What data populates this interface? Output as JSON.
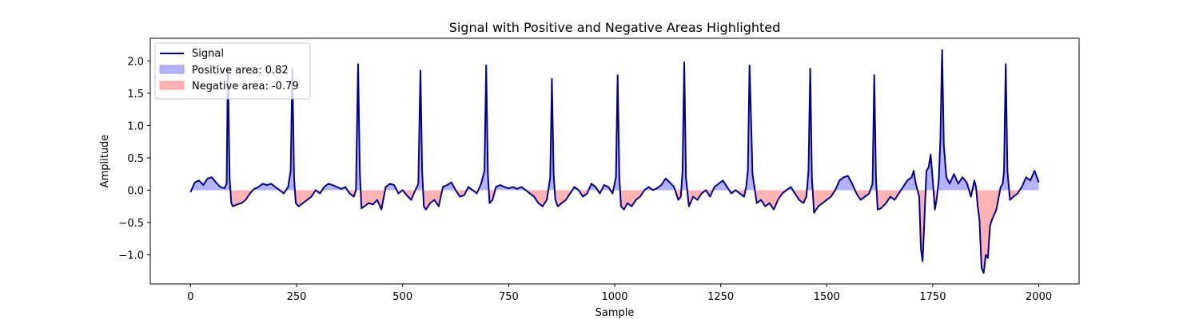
{
  "chart_data": {
    "type": "area",
    "title": "Signal with Positive and Negative Areas Highlighted",
    "xlabel": "Sample",
    "ylabel": "Amplitude",
    "xlim": [
      -95,
      2095
    ],
    "ylim": [
      -1.45,
      2.35
    ],
    "xticks": [
      0,
      250,
      500,
      750,
      1000,
      1250,
      1500,
      1750,
      2000
    ],
    "yticks": [
      -1.0,
      -0.5,
      0.0,
      0.5,
      1.0,
      1.5,
      2.0
    ],
    "xtick_labels": [
      "0",
      "250",
      "500",
      "750",
      "1000",
      "1250",
      "1500",
      "1750",
      "2000"
    ],
    "ytick_labels": [
      "−1.0",
      "−0.5",
      "0.0",
      "0.5",
      "1.0",
      "1.5",
      "2.0"
    ],
    "grid": false,
    "legend_position": "top-left",
    "legend": [
      {
        "label": "Signal",
        "kind": "line",
        "color": "#00008b"
      },
      {
        "label": "Positive area: 0.82",
        "kind": "patch",
        "color": "#0000ff"
      },
      {
        "label": "Negative area: -0.79",
        "kind": "patch",
        "color": "#ff0000"
      }
    ],
    "series": [
      {
        "name": "Signal",
        "color": "#00008b",
        "fill_positive_color": "#b3b3ff",
        "fill_negative_color": "#ffb3b3",
        "x": [
          0,
          10,
          20,
          30,
          40,
          50,
          60,
          70,
          80,
          85,
          88,
          92,
          96,
          100,
          110,
          120,
          130,
          140,
          150,
          160,
          170,
          180,
          190,
          200,
          210,
          220,
          230,
          236,
          240,
          244,
          248,
          255,
          265,
          275,
          285,
          295,
          305,
          315,
          325,
          335,
          345,
          355,
          365,
          375,
          385,
          390,
          395,
          399,
          403,
          410,
          420,
          430,
          440,
          450,
          460,
          470,
          480,
          490,
          500,
          510,
          520,
          530,
          537,
          542,
          546,
          550,
          555,
          565,
          575,
          585,
          595,
          605,
          615,
          625,
          635,
          645,
          655,
          665,
          675,
          685,
          693,
          697,
          701,
          705,
          712,
          720,
          730,
          740,
          750,
          760,
          770,
          780,
          790,
          800,
          810,
          820,
          830,
          840,
          848,
          852,
          856,
          860,
          866,
          875,
          885,
          895,
          905,
          915,
          925,
          935,
          945,
          955,
          965,
          975,
          985,
          995,
          1003,
          1007,
          1011,
          1015,
          1022,
          1030,
          1040,
          1050,
          1060,
          1070,
          1080,
          1090,
          1100,
          1110,
          1120,
          1130,
          1140,
          1150,
          1156,
          1160,
          1164,
          1168,
          1175,
          1185,
          1195,
          1205,
          1215,
          1225,
          1235,
          1245,
          1255,
          1265,
          1275,
          1285,
          1295,
          1305,
          1310,
          1314,
          1318,
          1325,
          1335,
          1345,
          1355,
          1365,
          1375,
          1385,
          1395,
          1405,
          1415,
          1425,
          1435,
          1445,
          1452,
          1457,
          1461,
          1465,
          1470,
          1480,
          1490,
          1500,
          1510,
          1520,
          1530,
          1540,
          1550,
          1560,
          1570,
          1580,
          1590,
          1600,
          1608,
          1612,
          1616,
          1620,
          1628,
          1640,
          1650,
          1660,
          1670,
          1680,
          1690,
          1700,
          1705,
          1710,
          1718,
          1722,
          1726,
          1730,
          1735,
          1740,
          1745,
          1750,
          1755,
          1760,
          1764,
          1768,
          1772,
          1776,
          1782,
          1790,
          1800,
          1810,
          1820,
          1830,
          1840,
          1848,
          1852,
          1856,
          1860,
          1865,
          1870,
          1875,
          1880,
          1885,
          1890,
          1900,
          1910,
          1915,
          1918,
          1922,
          1926,
          1932,
          1940,
          1950,
          1960,
          1970,
          1980,
          1990,
          2000
        ],
        "y": [
          -0.03,
          0.12,
          0.15,
          0.08,
          0.18,
          0.2,
          0.12,
          0.05,
          0.03,
          0.1,
          1.9,
          0.2,
          -0.2,
          -0.25,
          -0.22,
          -0.2,
          -0.15,
          -0.05,
          0.02,
          0.05,
          0.1,
          0.08,
          0.1,
          0.05,
          0.0,
          -0.05,
          0.05,
          0.3,
          1.88,
          0.2,
          -0.2,
          -0.25,
          -0.2,
          -0.15,
          -0.1,
          0.0,
          -0.05,
          0.05,
          0.1,
          0.08,
          0.05,
          0.02,
          0.05,
          -0.05,
          -0.1,
          0.0,
          1.95,
          0.3,
          -0.28,
          -0.25,
          -0.2,
          -0.22,
          -0.15,
          -0.3,
          0.05,
          0.1,
          0.08,
          -0.05,
          0.0,
          -0.08,
          -0.15,
          0.0,
          0.1,
          1.85,
          0.3,
          -0.25,
          -0.3,
          -0.2,
          -0.15,
          -0.25,
          0.05,
          0.08,
          0.12,
          0.0,
          -0.1,
          -0.08,
          0.05,
          0.0,
          -0.05,
          0.1,
          0.3,
          1.93,
          0.25,
          -0.2,
          -0.15,
          0.05,
          0.08,
          0.05,
          0.03,
          0.05,
          0.02,
          0.05,
          0.0,
          -0.05,
          -0.1,
          -0.2,
          -0.25,
          -0.15,
          0.2,
          1.72,
          0.25,
          -0.15,
          -0.25,
          -0.2,
          -0.15,
          -0.05,
          0.05,
          0.0,
          -0.1,
          -0.05,
          0.1,
          0.05,
          -0.05,
          0.08,
          0.05,
          -0.05,
          0.2,
          1.78,
          0.2,
          -0.25,
          -0.3,
          -0.2,
          -0.25,
          -0.15,
          -0.1,
          0.0,
          0.05,
          0.0,
          0.03,
          0.08,
          0.18,
          0.12,
          0.05,
          -0.15,
          -0.1,
          0.3,
          1.98,
          0.2,
          -0.25,
          -0.1,
          -0.15,
          -0.05,
          0.0,
          -0.1,
          0.05,
          0.1,
          0.15,
          0.05,
          -0.05,
          0.0,
          -0.05,
          -0.1,
          0.05,
          0.3,
          1.93,
          0.25,
          -0.2,
          -0.15,
          -0.25,
          -0.2,
          -0.3,
          -0.15,
          -0.05,
          0.0,
          0.05,
          -0.05,
          -0.15,
          -0.2,
          -0.1,
          0.3,
          1.88,
          0.2,
          -0.35,
          -0.25,
          -0.2,
          -0.15,
          -0.1,
          0.0,
          0.15,
          0.2,
          0.22,
          0.1,
          -0.05,
          -0.15,
          -0.1,
          -0.05,
          0.1,
          1.78,
          0.2,
          -0.3,
          -0.28,
          -0.2,
          -0.1,
          -0.15,
          -0.05,
          0.05,
          0.15,
          0.2,
          0.3,
          0.1,
          -0.1,
          -0.9,
          -1.1,
          -0.5,
          0.3,
          0.35,
          0.55,
          0.15,
          -0.3,
          -0.1,
          0.15,
          0.8,
          2.17,
          0.7,
          0.2,
          0.1,
          0.25,
          0.1,
          0.2,
          0.12,
          -0.1,
          0.15,
          0.05,
          -0.25,
          -0.45,
          -1.2,
          -1.28,
          -1.0,
          -1.05,
          -0.55,
          -0.45,
          -0.3,
          0.05,
          0.1,
          0.3,
          1.95,
          0.3,
          -0.15,
          -0.1,
          -0.05,
          0.05,
          0.2,
          0.15,
          0.3,
          0.12
        ]
      }
    ]
  }
}
